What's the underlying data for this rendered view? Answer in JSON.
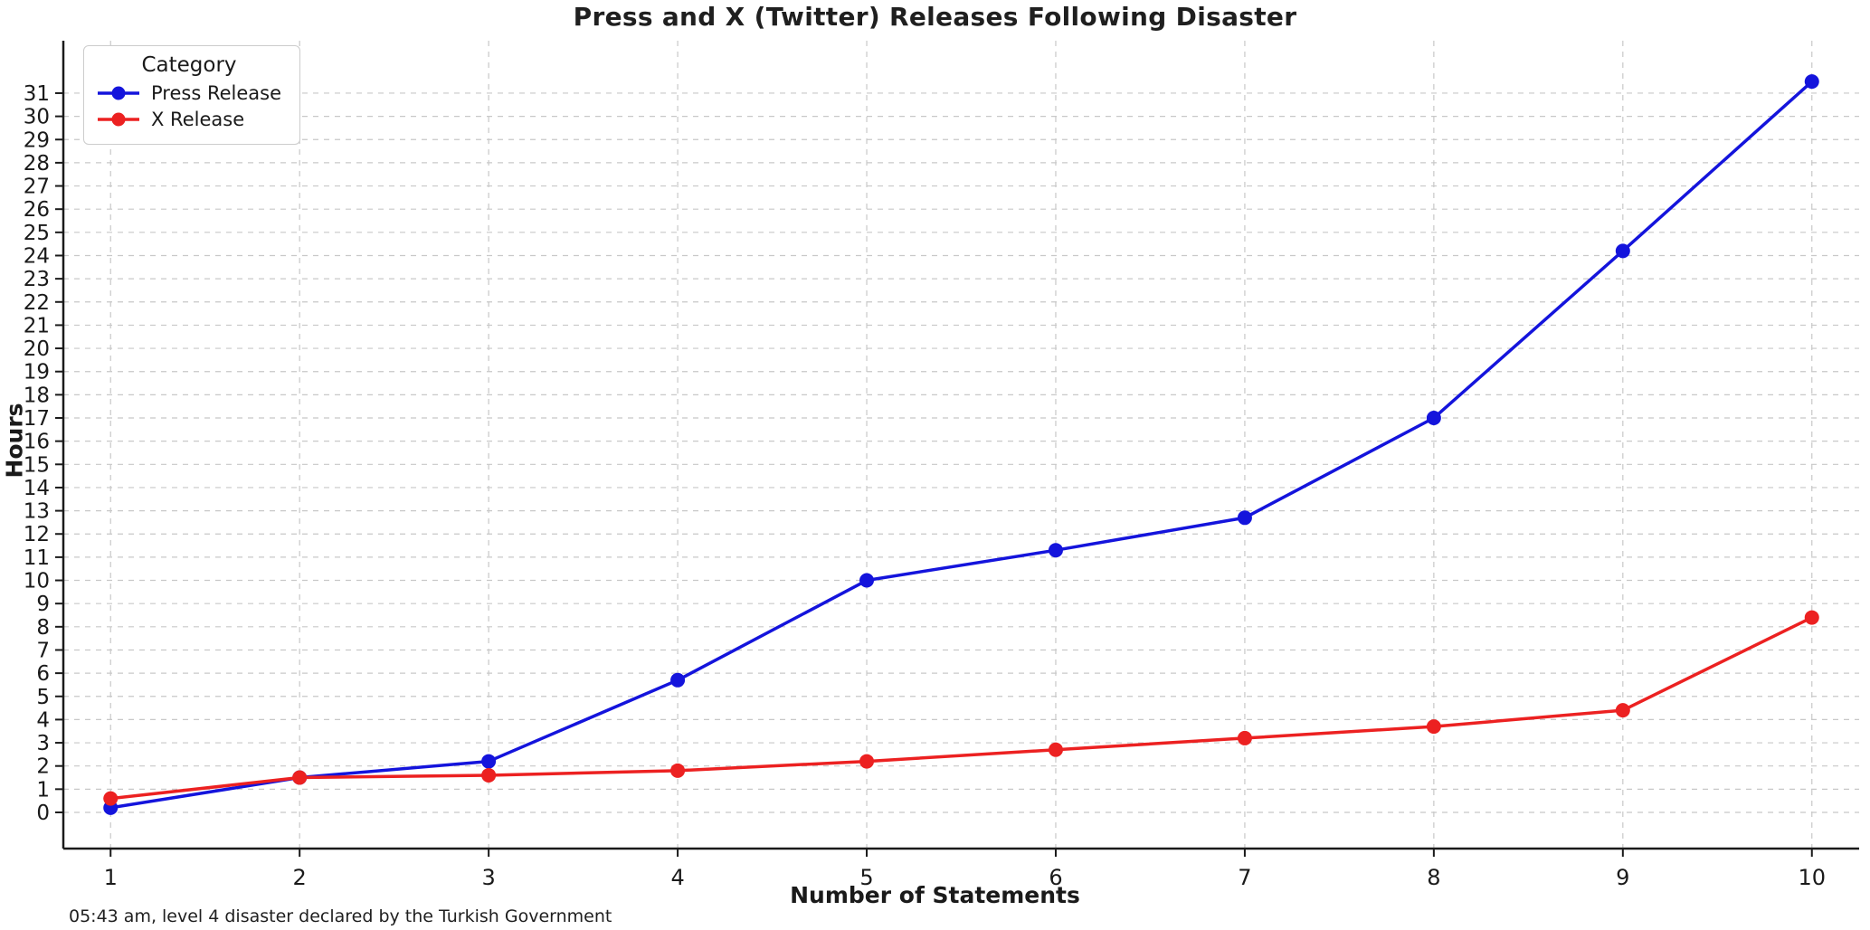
{
  "chart_data": {
    "type": "line",
    "title": "Press and X (Twitter) Releases Following Disaster",
    "xlabel": "Number of Statements",
    "ylabel": "Hours",
    "legend_title": "Category",
    "footnote": "05:43 am, level 4 disaster declared by the Turkish Government",
    "x": [
      1,
      2,
      3,
      4,
      5,
      6,
      7,
      8,
      9,
      10
    ],
    "series": [
      {
        "name": "Press Release",
        "color": "#1414dc",
        "values": [
          0.2,
          1.5,
          2.2,
          5.7,
          10.0,
          11.3,
          12.7,
          17.0,
          24.2,
          31.5
        ]
      },
      {
        "name": "X Release",
        "color": "#ec2121",
        "values": [
          0.6,
          1.5,
          1.6,
          1.8,
          2.2,
          2.7,
          3.2,
          3.7,
          4.4,
          8.4
        ]
      }
    ],
    "y_ticks": [
      0,
      1,
      2,
      3,
      4,
      5,
      6,
      7,
      8,
      9,
      10,
      11,
      12,
      13,
      14,
      15,
      16,
      17,
      18,
      19,
      20,
      21,
      22,
      23,
      24,
      25,
      26,
      27,
      28,
      29,
      30,
      31
    ],
    "xlim": [
      0.75,
      10.25
    ],
    "ylim": [
      -1.56,
      33.26
    ],
    "grid": true,
    "legend_position": "top-left",
    "grid_color": "#c8c8c8",
    "axis_color": "#1a1a1a"
  }
}
